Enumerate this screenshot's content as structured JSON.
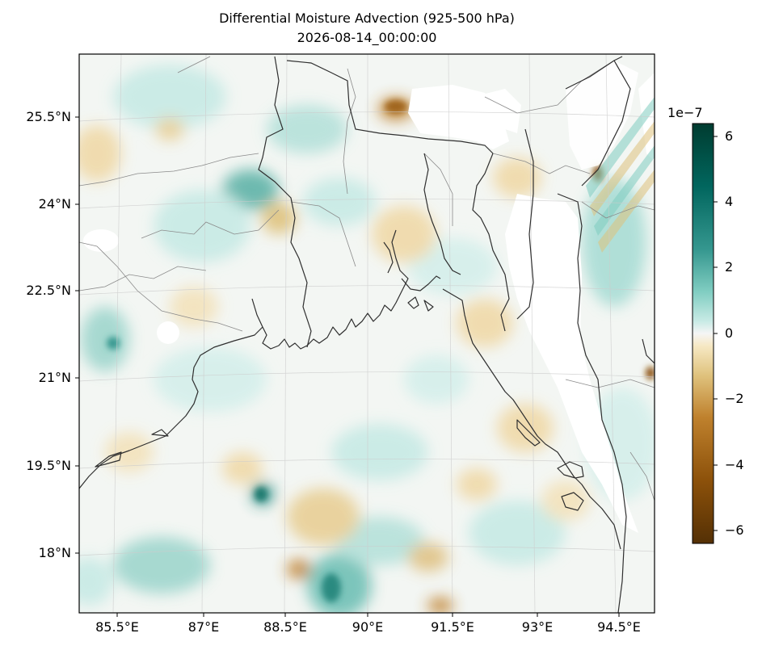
{
  "title": {
    "line1": "Differential Moisture Advection (925-500 hPa)",
    "line2": "2026-08-14_00:00:00"
  },
  "map": {
    "extent": {
      "lon_min": 84.3,
      "lon_max": 95.3,
      "lat_min": 16.7,
      "lat_max": 26.7
    },
    "longitude_ticks": [
      "85.5°E",
      "87°E",
      "88.5°E",
      "90°E",
      "91.5°E",
      "93°E",
      "94.5°E"
    ],
    "latitude_ticks": [
      "25.5°N",
      "24°N",
      "22.5°N",
      "21°N",
      "19.5°N",
      "18°N"
    ],
    "projection": "lambert-conformal",
    "gridlines": true,
    "features": [
      "coastline",
      "country-borders",
      "state-borders"
    ]
  },
  "colorbar": {
    "colormap": "BrBG",
    "exponent_label": "1e−7",
    "range": [
      -6.4e-07,
      6.4e-07
    ],
    "tick_labels": [
      "6",
      "4",
      "2",
      "0",
      "−2",
      "−4",
      "−6"
    ],
    "colors": {
      "max": "#003c30",
      "high": "#35978f",
      "mid_high": "#80cdc1",
      "zero": "#f5f5f5",
      "mid_low": "#dfc27d",
      "low": "#bf812d",
      "min": "#543005"
    }
  }
}
